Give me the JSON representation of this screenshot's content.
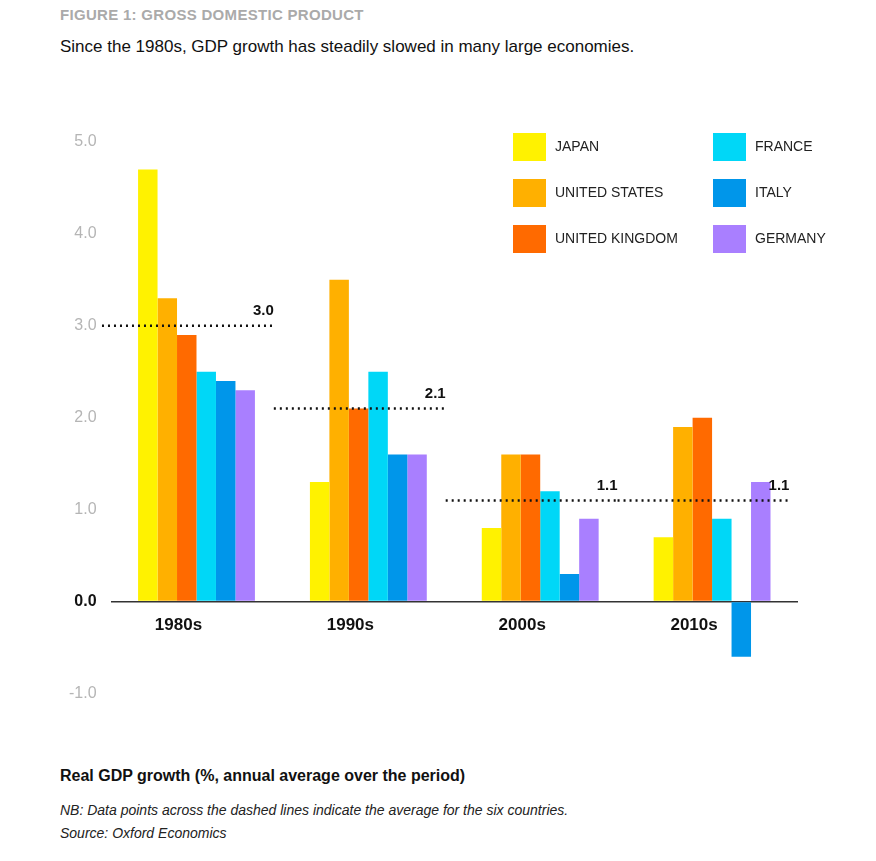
{
  "chart_data": {
    "type": "bar",
    "title": "FIGURE 1: GROSS DOMESTIC PRODUCT",
    "subtitle": "Since the 1980s, GDP growth has steadily slowed in many large economies.",
    "ylabel": "Real GDP growth (%, annual average over the period)",
    "note": "NB: Data points across the dashed lines indicate the average for the six countries.",
    "source": "Source: Oxford Economics",
    "categories": [
      "1980s",
      "1990s",
      "2000s",
      "2010s"
    ],
    "series": [
      {
        "name": "JAPAN",
        "color": "#fff200",
        "values": [
          4.7,
          1.3,
          0.8,
          0.7
        ]
      },
      {
        "name": "UNITED STATES",
        "color": "#ffb000",
        "values": [
          3.3,
          3.5,
          1.6,
          1.9
        ]
      },
      {
        "name": "UNITED KINGDOM",
        "color": "#ff6a00",
        "values": [
          2.9,
          2.1,
          1.6,
          2.0
        ]
      },
      {
        "name": "FRANCE",
        "color": "#00d7f7",
        "values": [
          2.5,
          2.5,
          1.2,
          0.9
        ]
      },
      {
        "name": "ITALY",
        "color": "#0096ea",
        "values": [
          2.4,
          1.6,
          0.3,
          -0.6
        ]
      },
      {
        "name": "GERMANY",
        "color": "#a97fff",
        "values": [
          2.3,
          1.6,
          0.9,
          1.3
        ]
      }
    ],
    "averages": {
      "values": [
        3.0,
        2.1,
        1.1,
        1.1
      ],
      "value_labels": [
        "3.0",
        "2.1",
        "1.1",
        "1.1"
      ]
    },
    "ylim": [
      -1,
      5
    ],
    "yticks": [
      {
        "value": -1,
        "label": "-1.0"
      },
      {
        "value": 0,
        "label": "0.0"
      },
      {
        "value": 1,
        "label": "1.0"
      },
      {
        "value": 2,
        "label": "2.0"
      },
      {
        "value": 3,
        "label": "3.0"
      },
      {
        "value": 4,
        "label": "4.0"
      },
      {
        "value": 5,
        "label": "5.0"
      }
    ],
    "grid": false,
    "legend": "upper right"
  }
}
